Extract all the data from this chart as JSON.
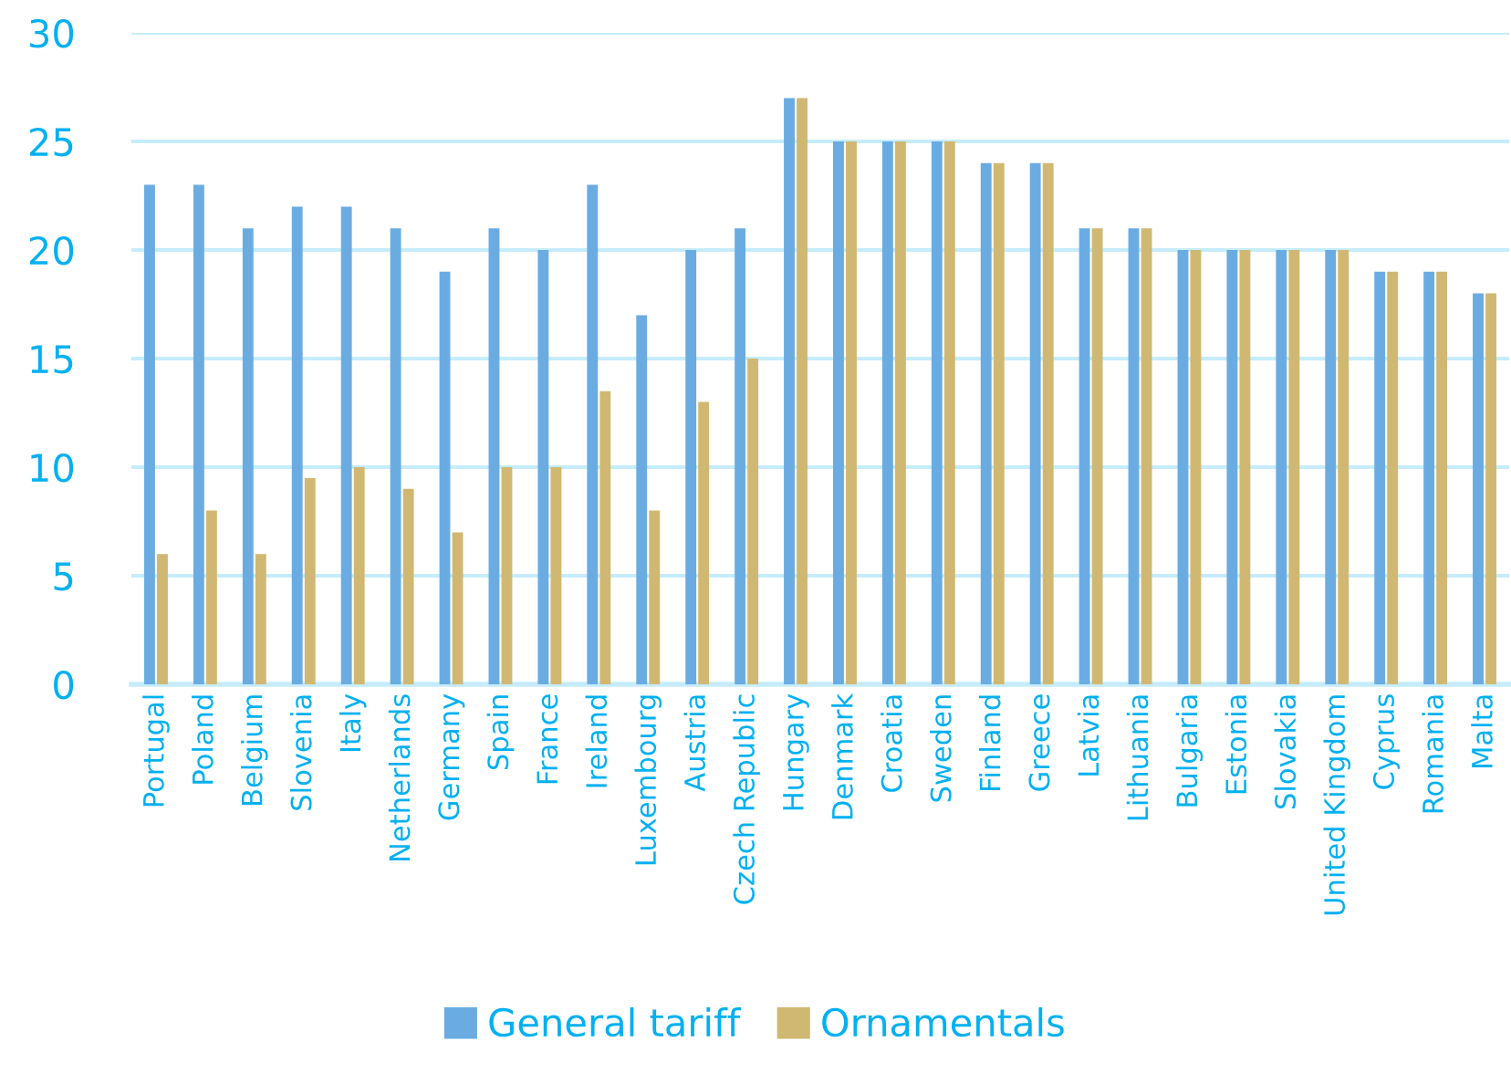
{
  "chart_data": {
    "type": "bar",
    "categories": [
      "Portugal",
      "Poland",
      "Belgium",
      "Slovenia",
      "Italy",
      "Netherlands",
      "Germany",
      "Spain",
      "France",
      "Ireland",
      "Luxembourg",
      "Austria",
      "Czech Republic",
      "Hungary",
      "Denmark",
      "Croatia",
      "Sweden",
      "Finland",
      "Greece",
      "Latvia",
      "Lithuania",
      "Bulgaria",
      "Estonia",
      "Slovakia",
      "United Kingdom",
      "Cyprus",
      "Romania",
      "Malta"
    ],
    "series": [
      {
        "name": "General tariff",
        "color": "#6aace2",
        "values": [
          23,
          23,
          21,
          22,
          22,
          21,
          19,
          21,
          20,
          23,
          17,
          20,
          21,
          27,
          25,
          25,
          25,
          24,
          24,
          21,
          21,
          20,
          20,
          20,
          20,
          19,
          19,
          18
        ]
      },
      {
        "name": "Ornamentals",
        "color": "#d0b872",
        "values": [
          6,
          8,
          6,
          9.5,
          10,
          9,
          7,
          10,
          10,
          13.5,
          8,
          13,
          15,
          27,
          25,
          25,
          25,
          24,
          24,
          21,
          21,
          20,
          20,
          20,
          20,
          19,
          19,
          18
        ]
      }
    ],
    "ylim": [
      0,
      30
    ],
    "yticks": [
      0,
      5,
      10,
      15,
      20,
      25,
      30
    ],
    "grid": "y",
    "legend": "bottom"
  }
}
